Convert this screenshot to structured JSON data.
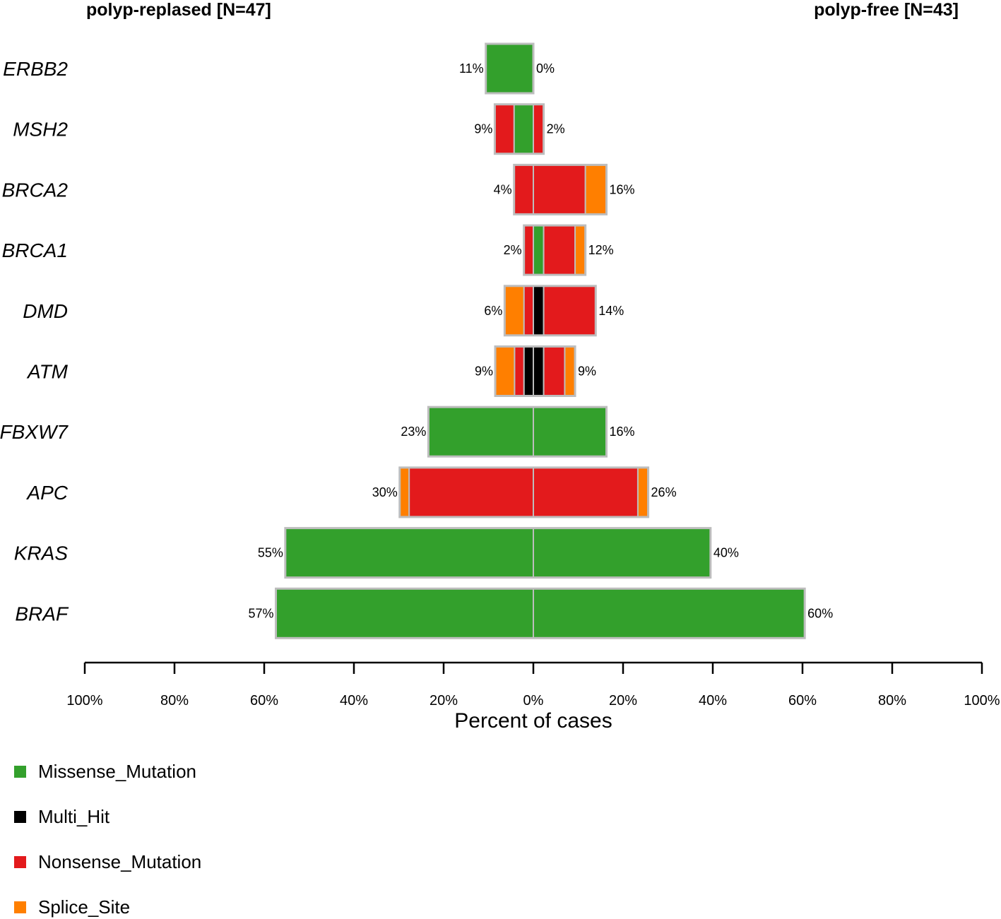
{
  "chart_data": {
    "type": "bar",
    "orientation": "horizontal",
    "style": "co-bar (mirrored stacked)",
    "groups": {
      "left": "polyp-replased [N=47]",
      "right": "polyp-free [N=43]"
    },
    "xlabel": "Percent of cases",
    "xlim": [
      0,
      100
    ],
    "tick_values": [
      0,
      20,
      40,
      60,
      80,
      100
    ],
    "tick_labels_left": [
      "100%",
      "80%",
      "60%",
      "40%",
      "20%"
    ],
    "tick_labels_right": [
      "0%",
      "20%",
      "40%",
      "60%",
      "80%",
      "100%"
    ],
    "categories_legend": [
      {
        "name": "Missense_Mutation",
        "color": "#33a02c"
      },
      {
        "name": "Multi_Hit",
        "color": "#000000"
      },
      {
        "name": "Nonsense_Mutation",
        "color": "#e31a1c"
      },
      {
        "name": "Splice_Site",
        "color": "#ff7f00"
      }
    ],
    "genes": [
      {
        "gene": "ERBB2",
        "left_label": "11%",
        "right_label": "0%",
        "left": [
          {
            "type": "Missense_Mutation",
            "value": 10.6
          }
        ],
        "right": []
      },
      {
        "gene": "MSH2",
        "left_label": "9%",
        "right_label": "2%",
        "left": [
          {
            "type": "Missense_Mutation",
            "value": 4.3
          },
          {
            "type": "Nonsense_Mutation",
            "value": 4.3
          }
        ],
        "right": [
          {
            "type": "Nonsense_Mutation",
            "value": 2.3
          }
        ]
      },
      {
        "gene": "BRCA2",
        "left_label": "4%",
        "right_label": "16%",
        "left": [
          {
            "type": "Nonsense_Mutation",
            "value": 4.3
          }
        ],
        "right": [
          {
            "type": "Nonsense_Mutation",
            "value": 11.6
          },
          {
            "type": "Splice_Site",
            "value": 4.7
          }
        ]
      },
      {
        "gene": "BRCA1",
        "left_label": "2%",
        "right_label": "12%",
        "left": [
          {
            "type": "Nonsense_Mutation",
            "value": 2.1
          }
        ],
        "right": [
          {
            "type": "Missense_Mutation",
            "value": 2.3
          },
          {
            "type": "Nonsense_Mutation",
            "value": 7.0
          },
          {
            "type": "Splice_Site",
            "value": 2.3
          }
        ]
      },
      {
        "gene": "DMD",
        "left_label": "6%",
        "right_label": "14%",
        "left": [
          {
            "type": "Nonsense_Mutation",
            "value": 2.1
          },
          {
            "type": "Splice_Site",
            "value": 4.3
          }
        ],
        "right": [
          {
            "type": "Multi_Hit",
            "value": 2.3
          },
          {
            "type": "Nonsense_Mutation",
            "value": 11.6
          }
        ]
      },
      {
        "gene": "ATM",
        "left_label": "9%",
        "right_label": "9%",
        "left": [
          {
            "type": "Multi_Hit",
            "value": 2.1
          },
          {
            "type": "Nonsense_Mutation",
            "value": 2.1
          },
          {
            "type": "Splice_Site",
            "value": 4.3
          }
        ],
        "right": [
          {
            "type": "Multi_Hit",
            "value": 2.3
          },
          {
            "type": "Nonsense_Mutation",
            "value": 4.7
          },
          {
            "type": "Splice_Site",
            "value": 2.3
          }
        ]
      },
      {
        "gene": "FBXW7",
        "left_label": "23%",
        "right_label": "16%",
        "left": [
          {
            "type": "Missense_Mutation",
            "value": 23.4
          }
        ],
        "right": [
          {
            "type": "Missense_Mutation",
            "value": 16.3
          }
        ]
      },
      {
        "gene": "APC",
        "left_label": "30%",
        "right_label": "26%",
        "left": [
          {
            "type": "Nonsense_Mutation",
            "value": 27.7
          },
          {
            "type": "Splice_Site",
            "value": 2.1
          }
        ],
        "right": [
          {
            "type": "Nonsense_Mutation",
            "value": 23.3
          },
          {
            "type": "Splice_Site",
            "value": 2.3
          }
        ]
      },
      {
        "gene": "KRAS",
        "left_label": "55%",
        "right_label": "40%",
        "left": [
          {
            "type": "Missense_Mutation",
            "value": 55.3
          }
        ],
        "right": [
          {
            "type": "Missense_Mutation",
            "value": 39.5
          }
        ]
      },
      {
        "gene": "BRAF",
        "left_label": "57%",
        "right_label": "60%",
        "left": [
          {
            "type": "Missense_Mutation",
            "value": 57.4
          }
        ],
        "right": [
          {
            "type": "Missense_Mutation",
            "value": 60.5
          }
        ]
      }
    ]
  }
}
